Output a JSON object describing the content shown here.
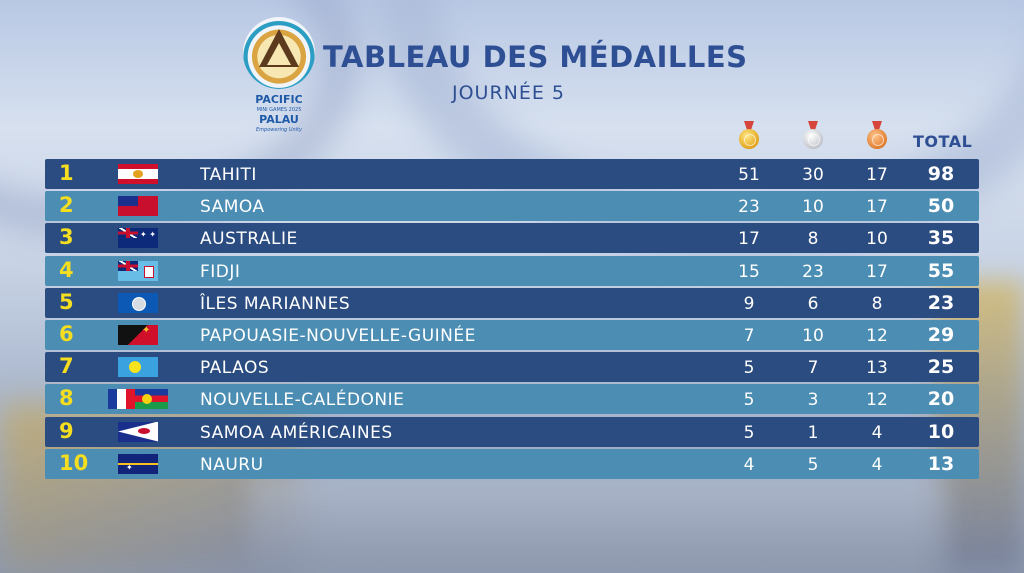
{
  "header": {
    "logo": {
      "line1": "PACIFIC",
      "line2": "MINI GAMES 2025",
      "line3": "PALAU",
      "line4": "Empowering Unity"
    },
    "title": "TABLEAU DES MÉDAILLES",
    "subtitle": "JOURNÉE 5"
  },
  "columns": {
    "gold_icon": "gold-medal-icon",
    "silver_icon": "silver-medal-icon",
    "bronze_icon": "bronze-medal-icon",
    "total": "TOTAL"
  },
  "rows": [
    {
      "rank": "1",
      "flag": "tahiti",
      "country": "TAHITI",
      "gold": "51",
      "silver": "30",
      "bronze": "17",
      "total": "98"
    },
    {
      "rank": "2",
      "flag": "samoa",
      "country": "SAMOA",
      "gold": "23",
      "silver": "10",
      "bronze": "17",
      "total": "50"
    },
    {
      "rank": "3",
      "flag": "australia",
      "country": "AUSTRALIE",
      "gold": "17",
      "silver": "8",
      "bronze": "10",
      "total": "35"
    },
    {
      "rank": "4",
      "flag": "fiji",
      "country": "FIDJI",
      "gold": "15",
      "silver": "23",
      "bronze": "17",
      "total": "55"
    },
    {
      "rank": "5",
      "flag": "northern-mariana-islands",
      "country": "ÎLES MARIANNES",
      "gold": "9",
      "silver": "6",
      "bronze": "8",
      "total": "23"
    },
    {
      "rank": "6",
      "flag": "papua-new-guinea",
      "country": "PAPOUASIE-NOUVELLE-GUINÉE",
      "gold": "7",
      "silver": "10",
      "bronze": "12",
      "total": "29"
    },
    {
      "rank": "7",
      "flag": "palau",
      "country": "PALAOS",
      "gold": "5",
      "silver": "7",
      "bronze": "13",
      "total": "25"
    },
    {
      "rank": "8",
      "flag": "new-caledonia",
      "country": "NOUVELLE-CALÉDONIE",
      "gold": "5",
      "silver": "3",
      "bronze": "12",
      "total": "20"
    },
    {
      "rank": "9",
      "flag": "american-samoa",
      "country": "SAMOA AMÉRICAINES",
      "gold": "5",
      "silver": "1",
      "bronze": "4",
      "total": "10"
    },
    {
      "rank": "10",
      "flag": "nauru",
      "country": "NAURU",
      "gold": "4",
      "silver": "5",
      "bronze": "4",
      "total": "13"
    }
  ],
  "colors": {
    "title": "#2e4f93",
    "row_dark": "#2b4c80",
    "row_light": "#4c8db3",
    "rank": "#f5de1f"
  }
}
